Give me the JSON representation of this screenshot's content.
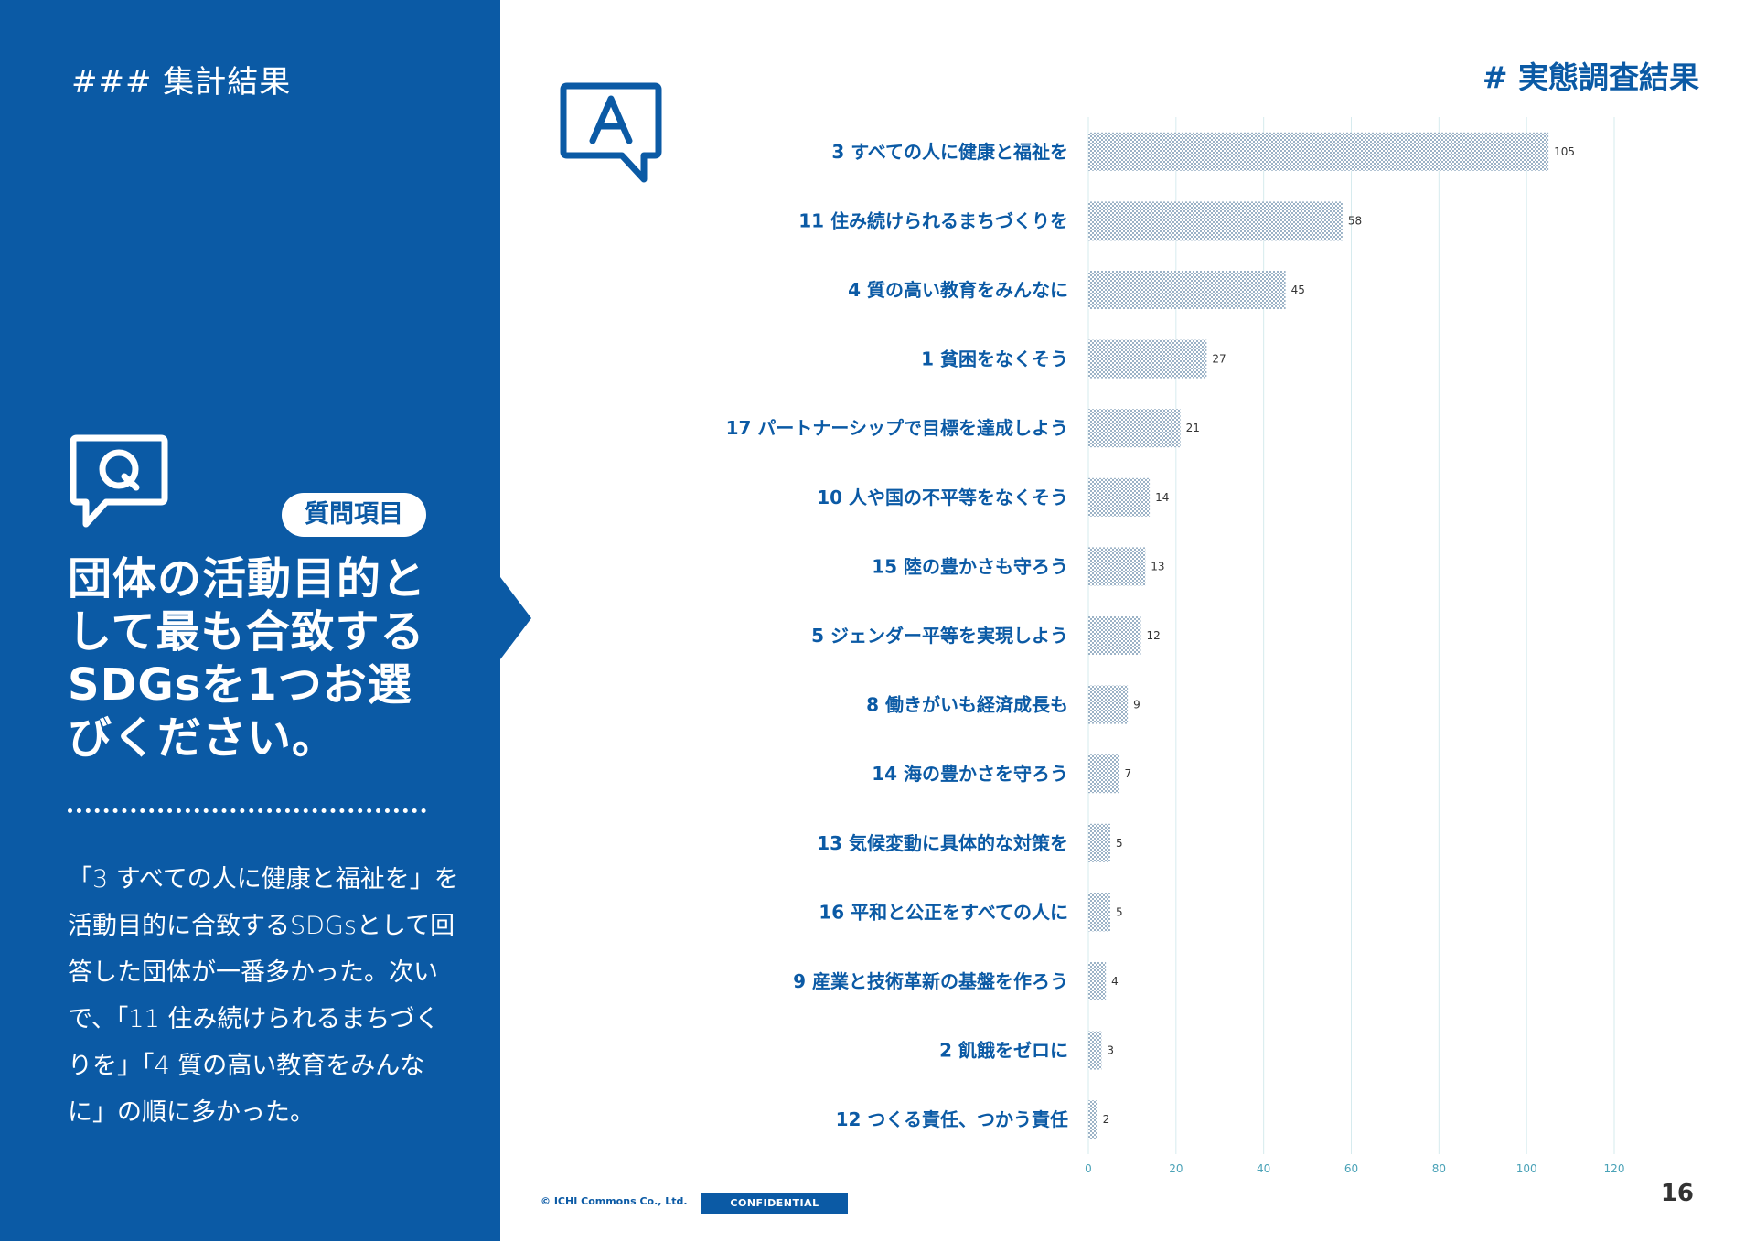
{
  "section_tag": "### 集計結果",
  "page_heading": "# 実態調査結果",
  "question_badge": "質問項目",
  "question": "団体の活動目的として最も合致するSDGsを1つお選びください。",
  "answer_summary": "「3 すべての人に健康と福祉を」を活動目的に合致するSDGsとして回答した団体が一番多かった。次いで、「11 住み続けられるまちづくりを」「4 質の高い教育をみんなに」の順に多かった。",
  "icons": {
    "question": "q-speech-bubble-icon",
    "answer": "a-speech-bubble-icon"
  },
  "colors": {
    "brand_blue": "#0b5aa5",
    "bar_fill": "#9cb3c7",
    "bar_pattern": "#ffffff",
    "grid": "#d6ebee",
    "tick_label": "#4aa2b7"
  },
  "footer": {
    "copyright": "© ICHI Commons Co., Ltd.",
    "confidential": "CONFIDENTIAL",
    "page_number": "16"
  },
  "chart_data": {
    "type": "bar",
    "orientation": "horizontal",
    "categories": [
      "3 すべての人に健康と福祉を",
      "11 住み続けられるまちづくりを",
      "4 質の高い教育をみんなに",
      "1 貧困をなくそう",
      "17 パートナーシップで目標を達成しよう",
      "10 人や国の不平等をなくそう",
      "15 陸の豊かさも守ろう",
      "5 ジェンダー平等を実現しよう",
      "8 働きがいも経済成長も",
      "14 海の豊かさを守ろう",
      "13 気候変動に具体的な対策を",
      "16 平和と公正をすべての人に",
      "9 産業と技術革新の基盤を作ろう",
      "2 飢餓をゼロに",
      "12 つくる責任、つかう責任"
    ],
    "values": [
      105,
      58,
      45,
      27,
      21,
      14,
      13,
      12,
      9,
      7,
      5,
      5,
      4,
      3,
      2
    ],
    "xlim": [
      0,
      120
    ],
    "xticks": [
      0,
      20,
      40,
      60,
      80,
      100,
      120
    ],
    "grid": true,
    "title": "",
    "xlabel": "",
    "ylabel": ""
  }
}
